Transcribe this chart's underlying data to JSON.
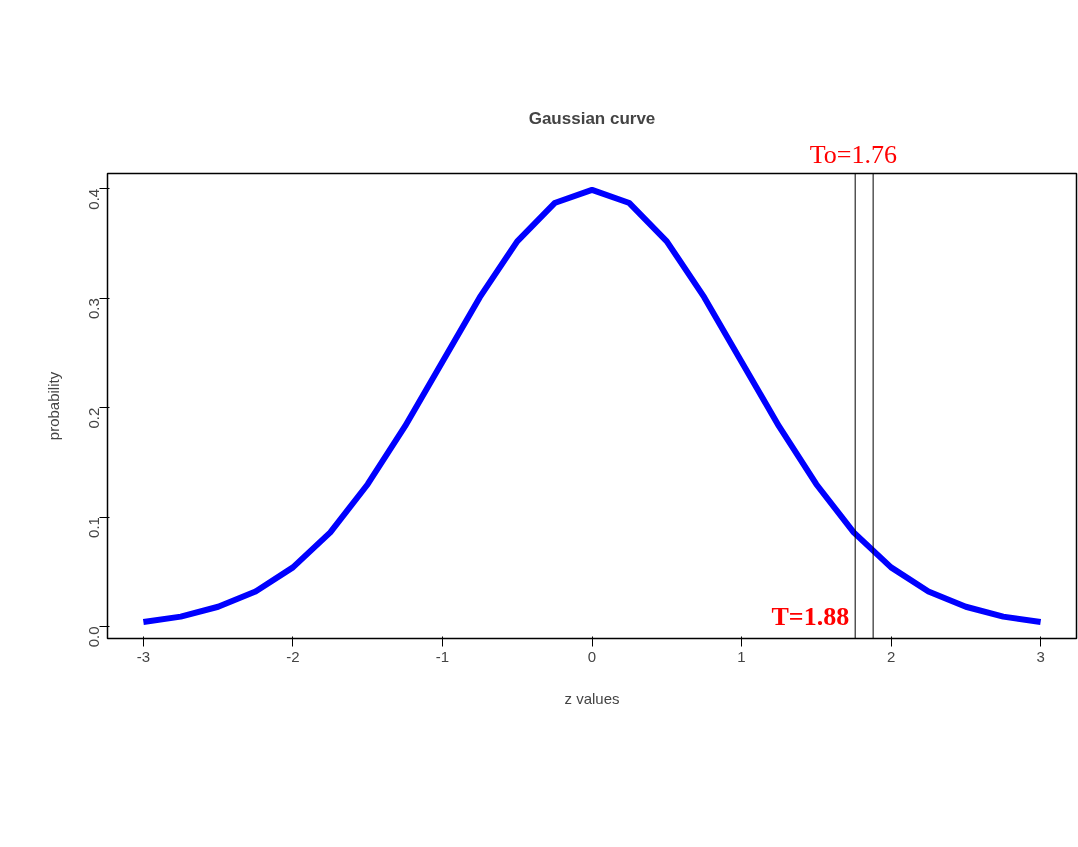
{
  "chart_data": {
    "type": "line",
    "title": "Gaussian curve",
    "xlabel": "z values",
    "ylabel": "probability",
    "series": [
      {
        "color": "#0000ff",
        "x": [
          -3,
          -2.75,
          -2.5,
          -2.25,
          -2,
          -1.75,
          -1.5,
          -1.25,
          -1,
          -0.75,
          -0.5,
          -0.25,
          0,
          0.25,
          0.5,
          0.75,
          1,
          1.25,
          1.5,
          1.75,
          2,
          2.25,
          2.5,
          2.75,
          3
        ],
        "values": [
          0.004,
          0.009,
          0.018,
          0.032,
          0.054,
          0.086,
          0.13,
          0.183,
          0.242,
          0.301,
          0.352,
          0.387,
          0.399,
          0.387,
          0.352,
          0.301,
          0.242,
          0.183,
          0.13,
          0.086,
          0.054,
          0.032,
          0.018,
          0.009,
          0.004
        ]
      }
    ],
    "xlim": [
      -3.24,
      3.24
    ],
    "ylim": [
      -0.011,
      0.414
    ],
    "xticks": [
      -3,
      -2,
      -1,
      0,
      1,
      2,
      3
    ],
    "yticks": [
      {
        "value": 0,
        "label": "0.0"
      },
      0.1,
      0.2,
      0.3,
      0.4
    ],
    "ref_lines": [
      {
        "axis": "x",
        "value": 1.76,
        "label": "To=1.76",
        "color": "#000000"
      },
      {
        "axis": "x",
        "value": 1.88,
        "label": "T=1.88",
        "color": "#000000"
      }
    ],
    "grid": false,
    "marker": "none",
    "line_style": "solid"
  }
}
